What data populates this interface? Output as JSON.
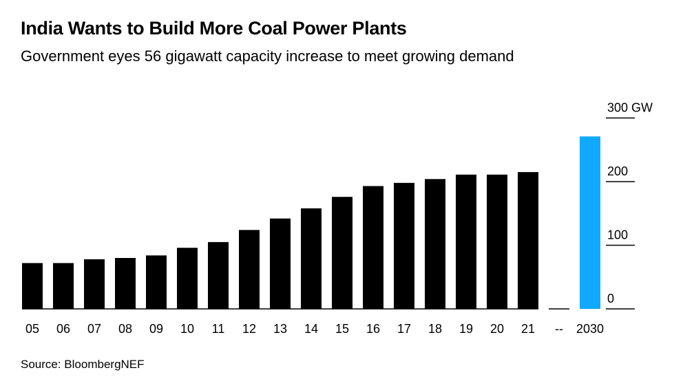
{
  "title": "India Wants to Build More Coal Power Plants",
  "subtitle": "Government eyes 56 gigawatt capacity increase to meet growing demand",
  "source": "Source: BloombergNEF",
  "colors": {
    "bar": "#000000",
    "highlight": "#10a9ff",
    "axis": "#000000"
  },
  "chart_data": {
    "type": "bar",
    "categories": [
      "05",
      "06",
      "07",
      "08",
      "09",
      "10",
      "11",
      "12",
      "13",
      "14",
      "15",
      "16",
      "17",
      "18",
      "19",
      "20",
      "21",
      "--",
      "2030"
    ],
    "values": [
      72,
      72,
      78,
      80,
      84,
      96,
      105,
      124,
      142,
      158,
      176,
      193,
      198,
      204,
      211,
      211,
      215,
      null,
      271
    ],
    "highlight_categories": [
      "2030"
    ],
    "y_ticks": [
      0,
      100,
      200,
      300
    ],
    "y_tick_labels": [
      "0",
      "100",
      "200",
      "300 GW"
    ],
    "ylim": [
      0,
      300
    ],
    "y_axis_position": "right",
    "grid": false,
    "legend": "none"
  }
}
